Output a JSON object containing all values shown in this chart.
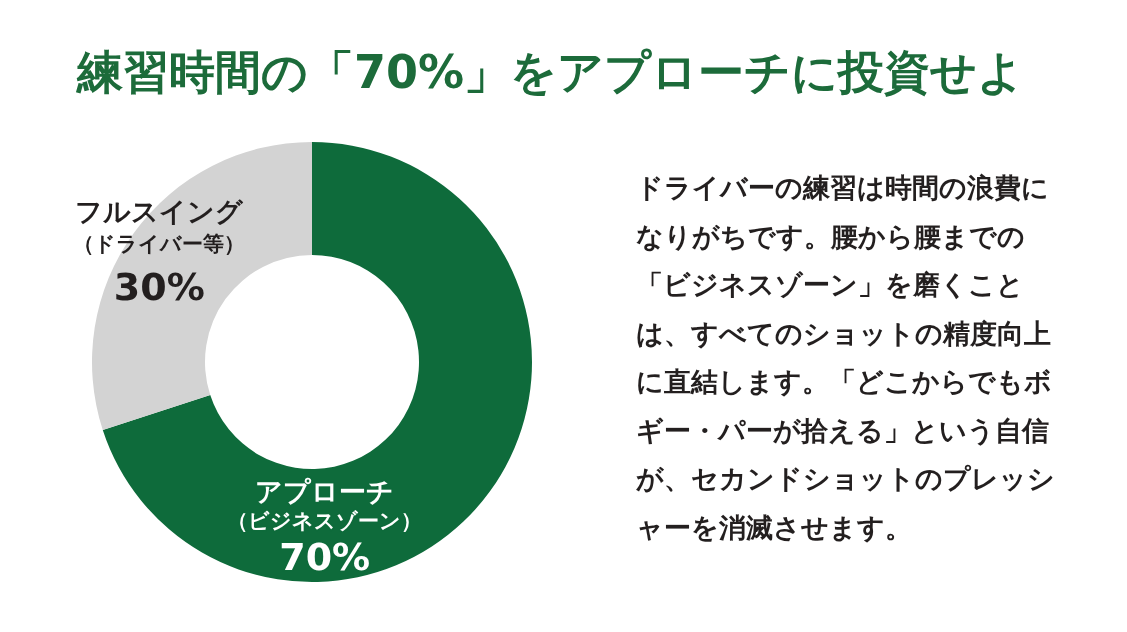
{
  "chart_data": {
    "type": "donut",
    "title": "練習時間の「70%」をアプローチに投資せよ",
    "categories": [
      "アプローチ（ビジネスゾーン）",
      "フルスイング（ドライバー等）"
    ],
    "values": [
      70,
      30
    ],
    "value_labels": [
      "70%",
      "30%"
    ],
    "colors": [
      "#0e6b3b",
      "#d3d3d3"
    ],
    "annotations": [
      "ドライバーの練習は時間の浪費になりがちです。腰から腰までの「ビジネスゾーン」を磨くことは、すべてのショットの精度向上に直結します。「どこからでもボギー・パーが拾える」という自信が、セカンドショットのプレッシャーを消滅させます。"
    ]
  }
}
